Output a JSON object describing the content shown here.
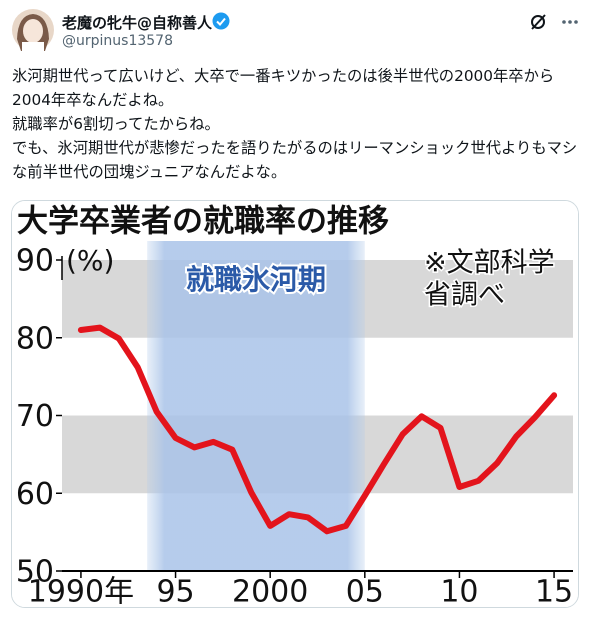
{
  "tweet": {
    "name": "老魔の牝牛@自称善人",
    "handle": "@urpinus13578",
    "text": [
      "氷河期世代って広いけど、大卒で一番キツかったのは後半世代の2000年卒から2004年卒なんだよね。",
      "就職率が6割切ってたからね。",
      "でも、氷河期世代が悲惨だったを語りたがるのはリーマンショック世代よりもマシな前半世代の団塊ジュニアなんだよな。"
    ]
  },
  "chart_data": {
    "type": "line",
    "title": "大学卒業者の就職率の推移",
    "y_label": "(%)",
    "note": [
      "※文部科学",
      "省調べ"
    ],
    "shaded_period": {
      "label": "就職氷河期",
      "range": [
        1993.5,
        2005
      ]
    },
    "x": [
      1990,
      1991,
      1992,
      1993,
      1994,
      1995,
      1996,
      1997,
      1998,
      1999,
      2000,
      2001,
      2002,
      2003,
      2004,
      2005,
      2006,
      2007,
      2008,
      2009,
      2010,
      2011,
      2012,
      2013,
      2014,
      2015
    ],
    "values": [
      81,
      81.3,
      79.9,
      76.2,
      70.5,
      67.1,
      65.9,
      66.6,
      65.6,
      60.1,
      55.8,
      57.3,
      56.9,
      55.1,
      55.8,
      59.7,
      63.7,
      67.6,
      69.9,
      68.4,
      60.8,
      61.6,
      63.9,
      67.3,
      69.8,
      72.6
    ],
    "color": "#e3141c",
    "xlim": [
      1989,
      2016
    ],
    "ylim": [
      50,
      90
    ],
    "xticks": [
      {
        "value": 1990,
        "label": "1990年"
      },
      {
        "value": 1995,
        "label": "95"
      },
      2000,
      {
        "value": 2005,
        "label": "05"
      },
      {
        "value": 2010,
        "label": "10"
      },
      {
        "value": 2015,
        "label": "15"
      }
    ],
    "yticks": [
      50,
      60,
      70,
      80,
      90
    ],
    "banded_grid": true
  }
}
